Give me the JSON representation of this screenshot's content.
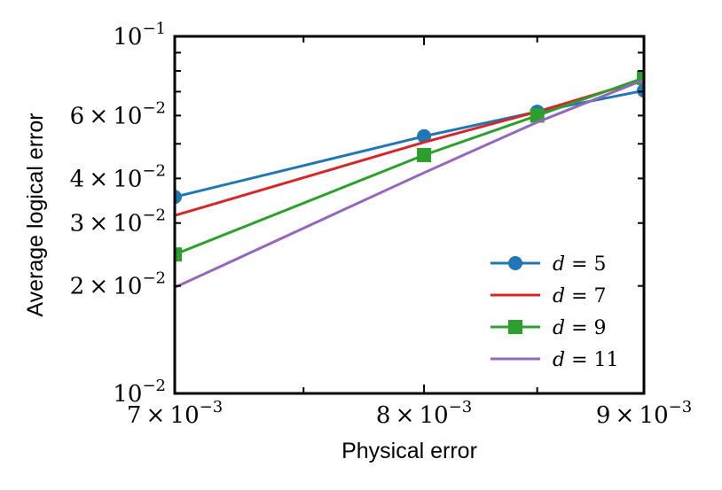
{
  "chart_data": {
    "type": "line",
    "xlabel": "Physical error",
    "ylabel": "Average logical error",
    "x_scale": "log",
    "y_scale": "log",
    "xlim": [
      0.007,
      0.009
    ],
    "ylim": [
      0.01,
      0.1
    ],
    "x_ticks": [
      {
        "value": 0.007,
        "mantissa": "7",
        "exponent": "−3"
      },
      {
        "value": 0.008,
        "mantissa": "8",
        "exponent": "−3"
      },
      {
        "value": 0.009,
        "mantissa": "9",
        "exponent": "−3"
      }
    ],
    "y_ticks_major": [
      {
        "value": 0.01,
        "mantissa": "",
        "exponent": "−2"
      },
      {
        "value": 0.1,
        "mantissa": "",
        "exponent": "−1"
      }
    ],
    "y_ticks_minor_labeled": [
      {
        "value": 0.02,
        "mantissa": "2",
        "exponent": "−2"
      },
      {
        "value": 0.03,
        "mantissa": "3",
        "exponent": "−2"
      },
      {
        "value": 0.04,
        "mantissa": "4",
        "exponent": "−2"
      },
      {
        "value": 0.06,
        "mantissa": "6",
        "exponent": "−2"
      }
    ],
    "y_ticks_minor_unlabeled": [
      0.05,
      0.07,
      0.08,
      0.09
    ],
    "x_ticks_minor": [
      0.0075,
      0.0085
    ],
    "tick_base": "10",
    "times_symbol": "×",
    "grid": false,
    "legend_position": "lower-right",
    "series": [
      {
        "name": "d = 5",
        "var": "d",
        "eq": " = 5",
        "color": "#1f77b4",
        "marker": "circle",
        "x": [
          0.007,
          0.008,
          0.0085,
          0.009
        ],
        "y": [
          0.0355,
          0.0525,
          0.0615,
          0.0705
        ]
      },
      {
        "name": "d = 7",
        "var": "d",
        "eq": " = 7",
        "color": "#d62728",
        "marker": "none",
        "x": [
          0.007,
          0.008,
          0.0085,
          0.009
        ],
        "y": [
          0.0315,
          0.0505,
          0.0615,
          0.0755
        ]
      },
      {
        "name": "d = 9",
        "var": "d",
        "eq": " = 9",
        "color": "#2ca02c",
        "marker": "square",
        "x": [
          0.007,
          0.008,
          0.0085,
          0.009
        ],
        "y": [
          0.0245,
          0.0465,
          0.06,
          0.0765
        ]
      },
      {
        "name": "d = 11",
        "var": "d",
        "eq": " = 11",
        "color": "#9467bd",
        "marker": "none",
        "x": [
          0.007,
          0.008,
          0.0085,
          0.009
        ],
        "y": [
          0.0198,
          0.0415,
          0.0575,
          0.0755
        ]
      }
    ]
  }
}
